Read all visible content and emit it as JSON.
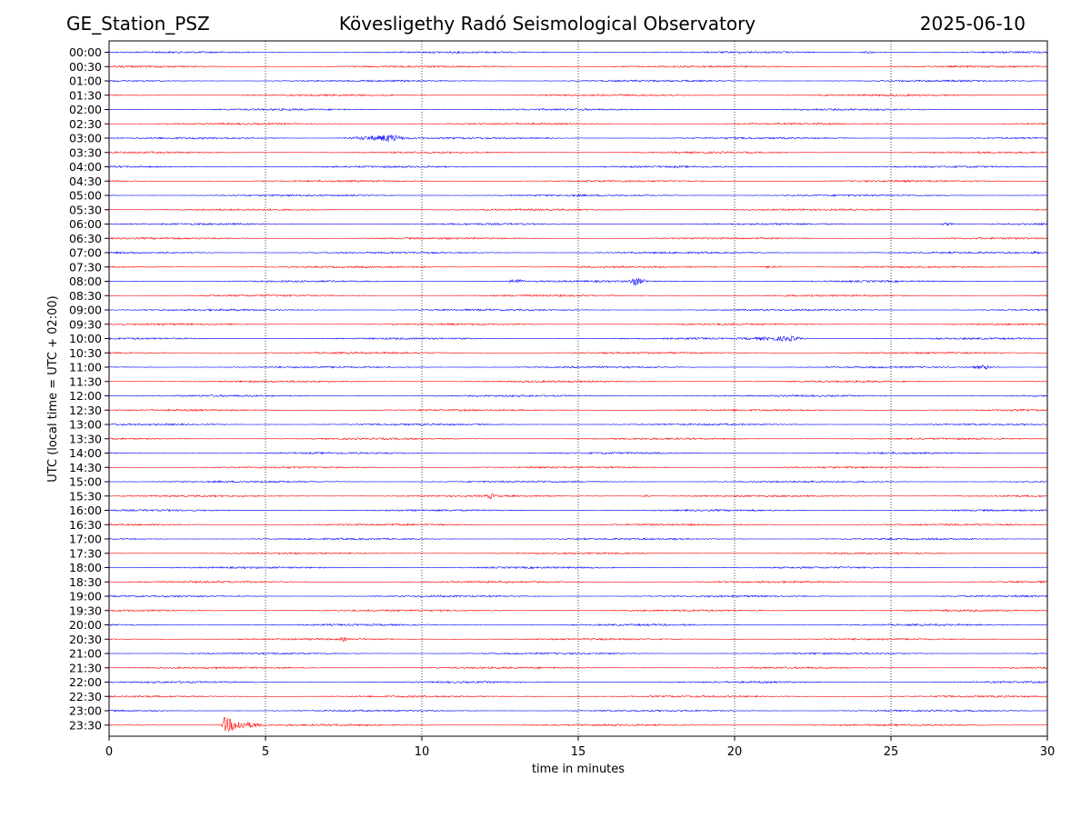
{
  "header": {
    "station": "GE_Station_PSZ",
    "title": "Kövesligethy Radó Seismological Observatory",
    "date": "2025-06-10"
  },
  "chart_data": {
    "type": "line",
    "title": "Kövesligethy Radó Seismological Observatory",
    "xlabel": "time in minutes",
    "ylabel": "UTC (local time = UTC + 02:00)",
    "xlim": [
      0,
      30
    ],
    "x_ticks": [
      0,
      5,
      10,
      15,
      20,
      25,
      30
    ],
    "x_grid": "dotted vertical at 5-minute intervals",
    "row_labels": [
      "00:00",
      "00:30",
      "01:00",
      "01:30",
      "02:00",
      "02:30",
      "03:00",
      "03:30",
      "04:00",
      "04:30",
      "05:00",
      "05:30",
      "06:00",
      "06:30",
      "07:00",
      "07:30",
      "08:00",
      "08:30",
      "09:00",
      "09:30",
      "10:00",
      "10:30",
      "11:00",
      "11:30",
      "12:00",
      "12:30",
      "13:00",
      "13:30",
      "14:00",
      "14:30",
      "15:00",
      "15:30",
      "16:00",
      "16:30",
      "17:00",
      "17:30",
      "18:00",
      "18:30",
      "19:00",
      "19:30",
      "20:00",
      "20:30",
      "21:00",
      "21:30",
      "22:00",
      "22:30",
      "23:00",
      "23:30"
    ],
    "trace_colors": [
      "#0000ff",
      "#ff0000"
    ],
    "noise_amplitude": 1.0,
    "events": [
      {
        "row": "03:00",
        "start_min": 6.5,
        "peak_min": 9.0,
        "end_min": 10.2,
        "amplitude": 4.5
      },
      {
        "row": "07:30",
        "start_min": 20.5,
        "peak_min": 21.2,
        "end_min": 22.0,
        "amplitude": 1.8
      },
      {
        "row": "08:00",
        "start_min": 12.5,
        "peak_min": 13.0,
        "end_min": 13.8,
        "amplitude": 3.0
      },
      {
        "row": "08:00",
        "start_min": 16.4,
        "peak_min": 16.8,
        "end_min": 17.6,
        "amplitude": 5.5
      },
      {
        "row": "10:00",
        "start_min": 18.0,
        "peak_min": 21.8,
        "end_min": 22.8,
        "amplitude": 3.0
      },
      {
        "row": "11:00",
        "start_min": 27.0,
        "peak_min": 28.0,
        "end_min": 28.7,
        "amplitude": 2.5
      },
      {
        "row": "15:30",
        "start_min": 11.8,
        "peak_min": 12.2,
        "end_min": 12.8,
        "amplitude": 3.5
      },
      {
        "row": "15:30",
        "start_min": 16.8,
        "peak_min": 17.2,
        "end_min": 17.6,
        "amplitude": 1.5
      },
      {
        "row": "20:30",
        "start_min": 7.0,
        "peak_min": 7.5,
        "end_min": 8.0,
        "amplitude": 2.5
      },
      {
        "row": "23:30",
        "start_min": 3.55,
        "peak_min": 3.65,
        "end_min": 5.8,
        "amplitude": 9.0
      },
      {
        "row": "00:00",
        "start_min": 23.8,
        "peak_min": 24.3,
        "end_min": 24.8,
        "amplitude": 1.5
      },
      {
        "row": "06:00",
        "start_min": 26.0,
        "peak_min": 26.8,
        "end_min": 27.5,
        "amplitude": 1.5
      },
      {
        "row": "07:00",
        "start_min": 29.2,
        "peak_min": 29.6,
        "end_min": 30.0,
        "amplitude": 2.0
      }
    ]
  }
}
